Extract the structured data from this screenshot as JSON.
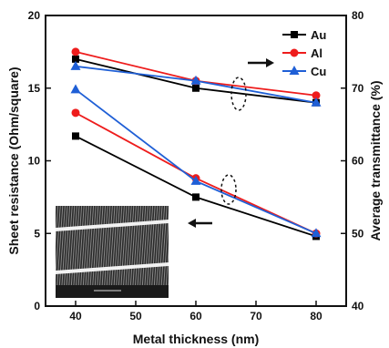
{
  "chart_data": {
    "type": "line",
    "x": [
      40,
      60,
      80
    ],
    "xlabel": "Metal thickness (nm)",
    "ylabel": "Sheet resistance (Ohm/square)",
    "ylabel_right": "Average transmittance (%)",
    "xlim": [
      35,
      85
    ],
    "ylim": [
      0,
      20
    ],
    "ylim_right": [
      40,
      80
    ],
    "x_ticks": [
      40,
      50,
      60,
      70,
      80
    ],
    "y_ticks": [
      0,
      5,
      10,
      15,
      20
    ],
    "y_ticks_right": [
      40,
      50,
      60,
      70,
      80
    ],
    "grid": false,
    "legend_position": "top-right",
    "series": [
      {
        "name": "Au",
        "axis": "left",
        "marker": "square",
        "color": "#000000",
        "values": [
          11.7,
          7.5,
          4.8
        ]
      },
      {
        "name": "Al",
        "axis": "left",
        "marker": "circle",
        "color": "#ee1c1c",
        "values": [
          13.3,
          8.8,
          5.0
        ]
      },
      {
        "name": "Cu",
        "axis": "left",
        "marker": "triangle",
        "color": "#1f5fd6",
        "values": [
          14.9,
          8.6,
          5.0
        ]
      },
      {
        "name": "Au",
        "axis": "right",
        "marker": "square",
        "color": "#000000",
        "values": [
          74.0,
          70.0,
          68.0
        ]
      },
      {
        "name": "Al",
        "axis": "right",
        "marker": "circle",
        "color": "#ee1c1c",
        "values": [
          75.0,
          71.0,
          69.0
        ]
      },
      {
        "name": "Cu",
        "axis": "right",
        "marker": "triangle",
        "color": "#1f5fd6",
        "values": [
          73.0,
          71.0,
          68.0
        ]
      }
    ],
    "legend": [
      "Au",
      "Al",
      "Cu"
    ]
  }
}
